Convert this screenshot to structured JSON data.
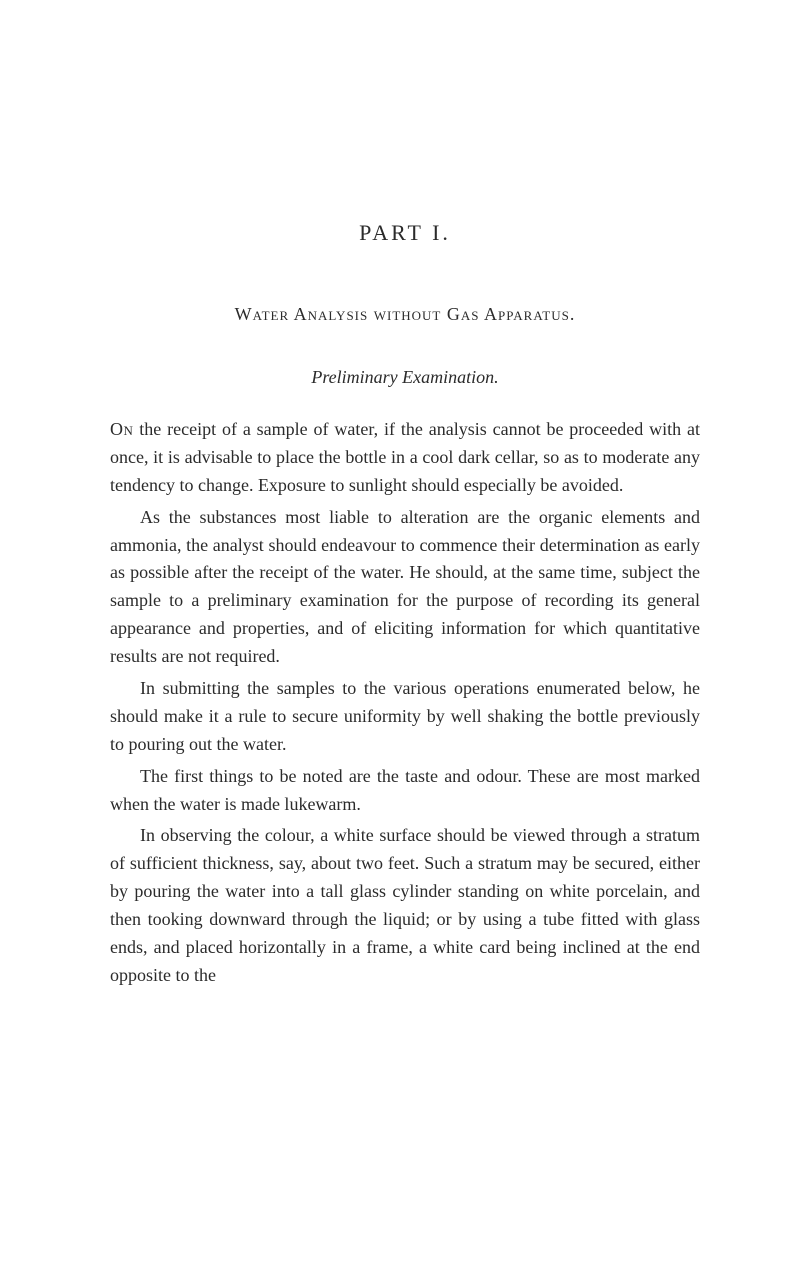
{
  "page": {
    "background_color": "#ffffff",
    "text_color": "#2b2b2b",
    "font_family": "Georgia, 'Times New Roman', serif",
    "body_fontsize": 18,
    "line_height": 1.55
  },
  "part_heading": {
    "text": "PART I.",
    "fontsize": 22,
    "letter_spacing": 3
  },
  "chapter_title": {
    "text": "Water Analysis without Gas Apparatus.",
    "fontsize": 18
  },
  "section_title": {
    "text": "Preliminary Examination.",
    "fontsize": 18,
    "style": "italic"
  },
  "paragraphs": {
    "p1_lead": "On",
    "p1_rest": " the receipt of a sample of water, if the analysis cannot be proceeded with at once, it is advisable to place the bottle in a cool dark cellar, so as to moderate any tendency to change. Exposure to sunlight should especially be avoided.",
    "p2": "As the substances most liable to alteration are the organic elements and ammonia, the analyst should endeavour to commence their determination as early as possible after the receipt of the water. He should, at the same time, subject the sample to a preliminary examination for the purpose of recording its general appearance and properties, and of eliciting information for which quantitative results are not required.",
    "p3": "In submitting the samples to the various operations enumerated below, he should make it a rule to secure uniformity by well shaking the bottle previously to pouring out the water.",
    "p4": "The first things to be noted are the taste and odour. These are most marked when the water is made lukewarm.",
    "p5": "In observing the colour, a white surface should be viewed through a stratum of sufficient thickness, say, about two feet. Such a stratum may be secured, either by pouring the water into a tall glass cylinder standing on white porcelain, and then tooking downward through the liquid; or by using a tube fitted with glass ends, and placed horizontally in a frame, a white card being inclined at the end opposite to the"
  }
}
